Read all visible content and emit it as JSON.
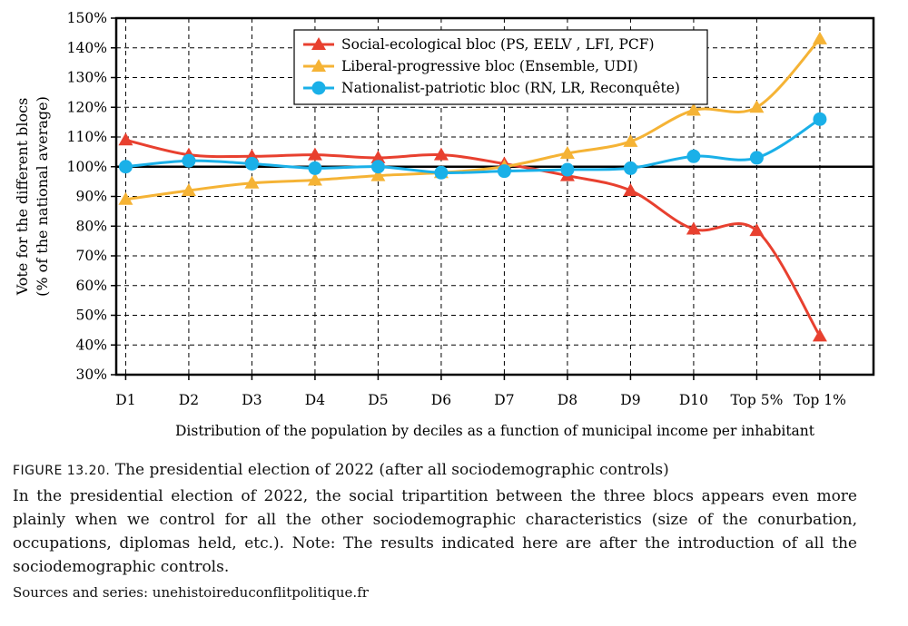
{
  "chart_data": {
    "type": "line",
    "categories": [
      "D1",
      "D2",
      "D3",
      "D4",
      "D5",
      "D6",
      "D7",
      "D8",
      "D9",
      "D10",
      "Top 5%",
      "Top 1%"
    ],
    "series": [
      {
        "name": "Social-ecological bloc (PS, EELV , LFI, PCF)",
        "color": "#e8402f",
        "marker": "triangle",
        "values": [
          109,
          104,
          103.5,
          104,
          103,
          104,
          101,
          97,
          92,
          79,
          78.5,
          43
        ]
      },
      {
        "name": "Liberal-progressive bloc (Ensemble, UDI)",
        "color": "#f5b335",
        "marker": "triangle",
        "values": [
          89,
          92,
          94.5,
          95.5,
          97,
          98,
          100,
          104.5,
          108.5,
          119,
          120,
          143
        ]
      },
      {
        "name": "Nationalist-patriotic bloc (RN, LR, Reconquête)",
        "color": "#1ab0e8",
        "marker": "circle",
        "values": [
          100,
          102,
          101,
          99.5,
          100,
          98,
          98.5,
          99,
          99.5,
          103.5,
          103,
          116
        ]
      }
    ],
    "ylim": [
      30,
      150
    ],
    "yticks": [
      "30%",
      "40%",
      "50%",
      "60%",
      "70%",
      "80%",
      "90%",
      "100%",
      "110%",
      "120%",
      "130%",
      "140%",
      "150%"
    ],
    "ylabel_line1": "Vote for the different blocs",
    "ylabel_line2": "(% of the national average)",
    "xlabel": "Distribution of the population by deciles as a function of municipal income per inhabitant",
    "reference_line": 100,
    "grid": true,
    "legend_position": "top-center"
  },
  "caption": {
    "label": "FIGURE 13.20.",
    "title": "The presidential election of 2022 (after all sociodemographic controls)",
    "body": "In the presidential election of 2022, the social tripartition between the three blocs appears even more plainly when we control for all the other sociodemographic characteristics (size of the conurbation, occupations, diplomas held, etc.). Note: The results indicated here are after the introduction of all the sociodemographic controls.",
    "sources": "Sources and series: unehistoireduconflitpolitique.fr"
  }
}
